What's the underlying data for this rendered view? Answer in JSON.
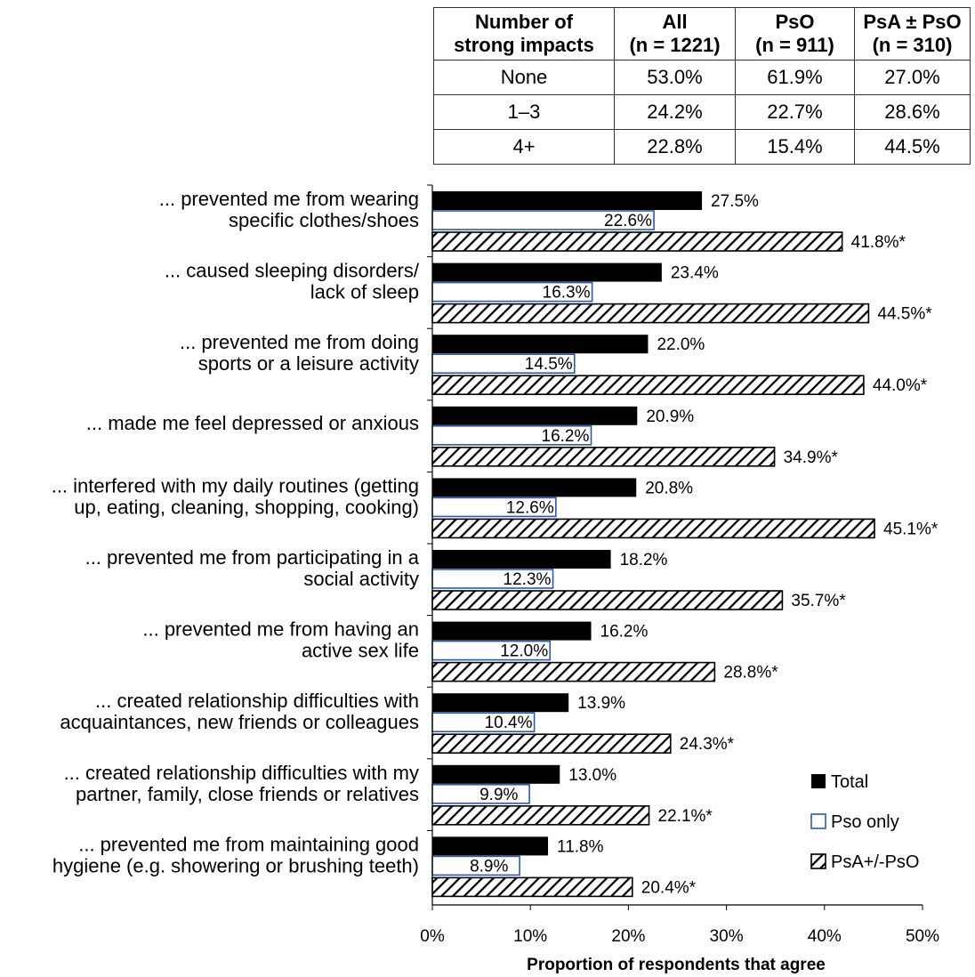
{
  "table": {
    "headers": [
      "Number of\nstrong impacts",
      "All\n(n = 1221)",
      "PsO\n(n = 911)",
      "PsA ± PsO\n(n = 310)"
    ],
    "rows": [
      [
        "None",
        "53.0%",
        "61.9%",
        "27.0%"
      ],
      [
        "1–3",
        "24.2%",
        "22.7%",
        "28.6%"
      ],
      [
        "4+",
        "22.8%",
        "15.4%",
        "44.5%"
      ]
    ]
  },
  "chart_data": {
    "type": "bar",
    "orientation": "horizontal",
    "xlabel": "Proportion of respondents that agree",
    "xlim": [
      0,
      50
    ],
    "xticks": [
      "0%",
      "10%",
      "20%",
      "30%",
      "40%",
      "50%"
    ],
    "legend_position": "bottom-right",
    "categories": [
      "... prevented me from wearing\nspecific clothes/shoes",
      "... caused sleeping disorders/\nlack of sleep",
      "... prevented me from doing\nsports or a leisure activity",
      "... made me feel depressed or anxious",
      "... interfered with my daily routines (getting\nup, eating, cleaning, shopping, cooking)",
      "... prevented me from participating in a\nsocial activity",
      "... prevented me from having an\nactive sex life",
      "... created relationship difficulties with\nacquaintances, new friends or colleagues",
      "... created relationship difficulties with my\npartner, family, close friends or relatives",
      "... prevented me from maintaining good\nhygiene (e.g. showering or brushing teeth)"
    ],
    "series": [
      {
        "name": "Total",
        "style": "solid",
        "color": "#000000",
        "values": [
          27.5,
          23.4,
          22.0,
          20.9,
          20.8,
          18.2,
          16.2,
          13.9,
          13.0,
          11.8
        ],
        "labels": [
          "27.5%",
          "23.4%",
          "22.0%",
          "20.9%",
          "20.8%",
          "18.2%",
          "16.2%",
          "13.9%",
          "13.0%",
          "11.8%"
        ]
      },
      {
        "name": "Pso only",
        "style": "outline",
        "color": "#2e5aa8",
        "values": [
          22.6,
          16.3,
          14.5,
          16.2,
          12.6,
          12.3,
          12.0,
          10.4,
          9.9,
          8.9
        ],
        "labels": [
          "22.6%",
          "16.3%",
          "14.5%",
          "16.2%",
          "12.6%",
          "12.3%",
          "12.0%",
          "10.4%",
          "9.9%",
          "8.9%"
        ]
      },
      {
        "name": "PsA+/-PsO",
        "style": "hatched",
        "color": "#000000",
        "values": [
          41.8,
          44.5,
          44.0,
          34.9,
          45.1,
          35.7,
          28.8,
          24.3,
          22.1,
          20.4
        ],
        "labels": [
          "41.8%*",
          "44.5%*",
          "44.0%*",
          "34.9%*",
          "45.1%*",
          "35.7%*",
          "28.8%*",
          "24.3%*",
          "22.1%*",
          "20.4%*"
        ]
      }
    ]
  }
}
